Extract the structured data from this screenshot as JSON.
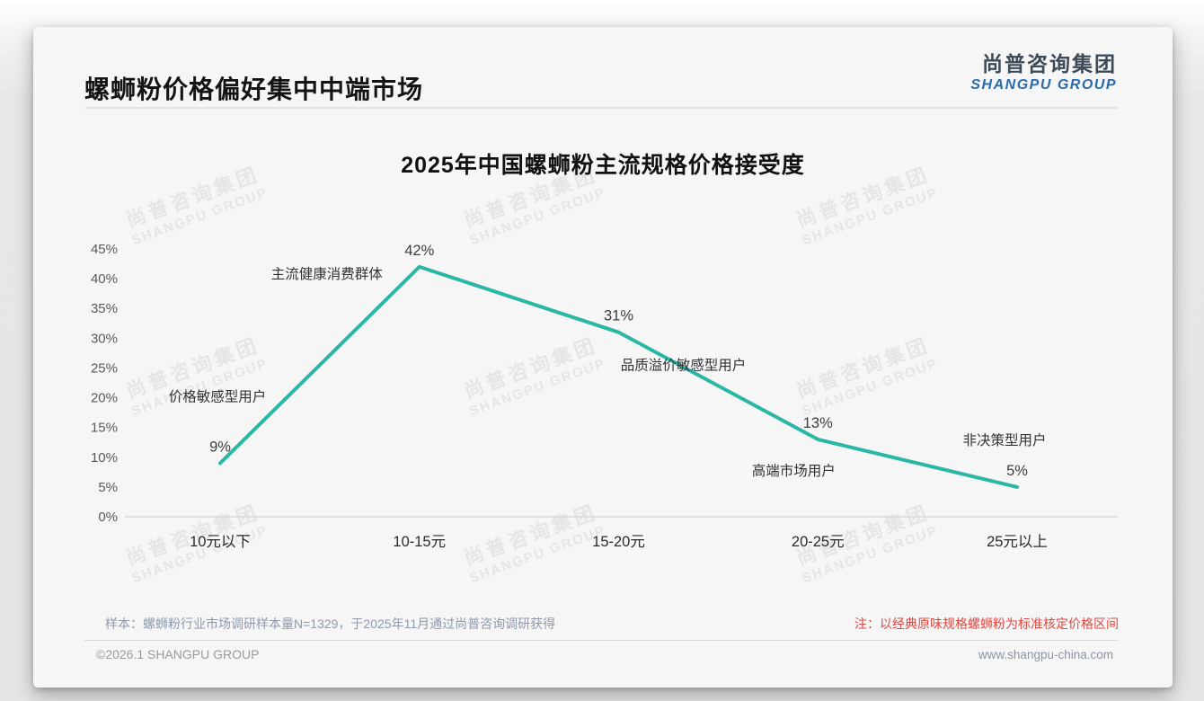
{
  "page": {
    "title": "螺蛳粉价格偏好集中中端市场"
  },
  "logo": {
    "cn": "尚普咨询集团",
    "en": "SHANGPU GROUP"
  },
  "watermark": {
    "cn": "尚普咨询集团",
    "en": "SHANGPU GROUP"
  },
  "chart_data": {
    "type": "line",
    "title": "2025年中国螺蛳粉主流规格价格接受度",
    "categories": [
      "10元以下",
      "10-15元",
      "15-20元",
      "20-25元",
      "25元以上"
    ],
    "values": [
      9,
      42,
      31,
      13,
      5
    ],
    "point_labels": [
      "9%",
      "42%",
      "31%",
      "13%",
      "5%"
    ],
    "annotations": [
      "价格敏感型用户",
      "主流健康消费群体",
      "品质溢价敏感型用户",
      "高端市场用户",
      "非决策型用户"
    ],
    "yticks": [
      "45%",
      "40%",
      "35%",
      "30%",
      "25%",
      "20%",
      "15%",
      "10%",
      "5%",
      "0%"
    ],
    "ylim": [
      0,
      45
    ],
    "xlabel": "",
    "ylabel": "",
    "grid": false,
    "legend": "none",
    "line_color": "#2ab7a6"
  },
  "notes": {
    "sample": "样本：螺蛳粉行业市场调研样本量N=1329，于2025年11月通过尚普咨询调研获得",
    "red_note": "注：以经典原味规格螺蛳粉为标准核定价格区间"
  },
  "footer": {
    "copyright": "©2026.1 SHANGPU GROUP",
    "website": "www.shangpu-china.com"
  },
  "colors": {
    "line": "#2ab7a6",
    "logo_dark": "#3e4a58",
    "logo_blue": "#2a6bb0",
    "note_red": "#df4840",
    "note_gray_blue": "#8e99ad",
    "axis_label": "#595959",
    "category_label": "#2b2b2b"
  }
}
